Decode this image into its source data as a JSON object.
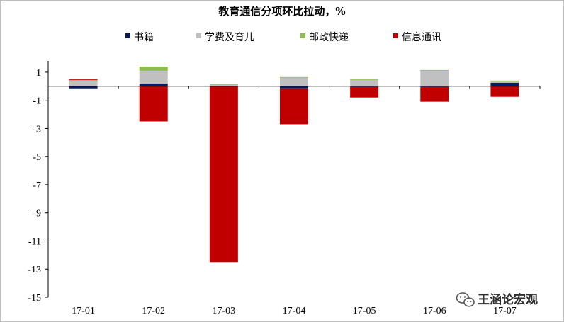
{
  "chart_data": {
    "type": "bar",
    "stacked": true,
    "title": "教育通信分项环比拉动，%",
    "categories": [
      "17-01",
      "17-02",
      "17-03",
      "17-04",
      "17-05",
      "17-06",
      "17-07"
    ],
    "series": [
      {
        "name": "书籍",
        "color": "#0a1a5c",
        "values": [
          -0.2,
          0.2,
          0.0,
          -0.2,
          -0.05,
          -0.05,
          0.25
        ]
      },
      {
        "name": "学费及育儿",
        "color": "#c0c0c0",
        "values": [
          0.4,
          0.9,
          0.1,
          0.6,
          0.45,
          1.1,
          0.1
        ]
      },
      {
        "name": "邮政快递",
        "color": "#8cbe50",
        "values": [
          0.05,
          0.3,
          0.05,
          0.05,
          0.05,
          0.05,
          0.05
        ]
      },
      {
        "name": "信息通讯",
        "color": "#c00000",
        "values": [
          0.05,
          -2.5,
          -12.5,
          -2.5,
          -0.75,
          -1.05,
          -0.75
        ]
      }
    ],
    "yticks": [
      1,
      -1,
      -3,
      -5,
      -7,
      -9,
      -11,
      -13,
      -15
    ],
    "ylim": [
      -15,
      1.8
    ],
    "legend_position": "top"
  },
  "watermark": {
    "text": "王涵论宏观",
    "icon": "wechat-logo-icon"
  }
}
